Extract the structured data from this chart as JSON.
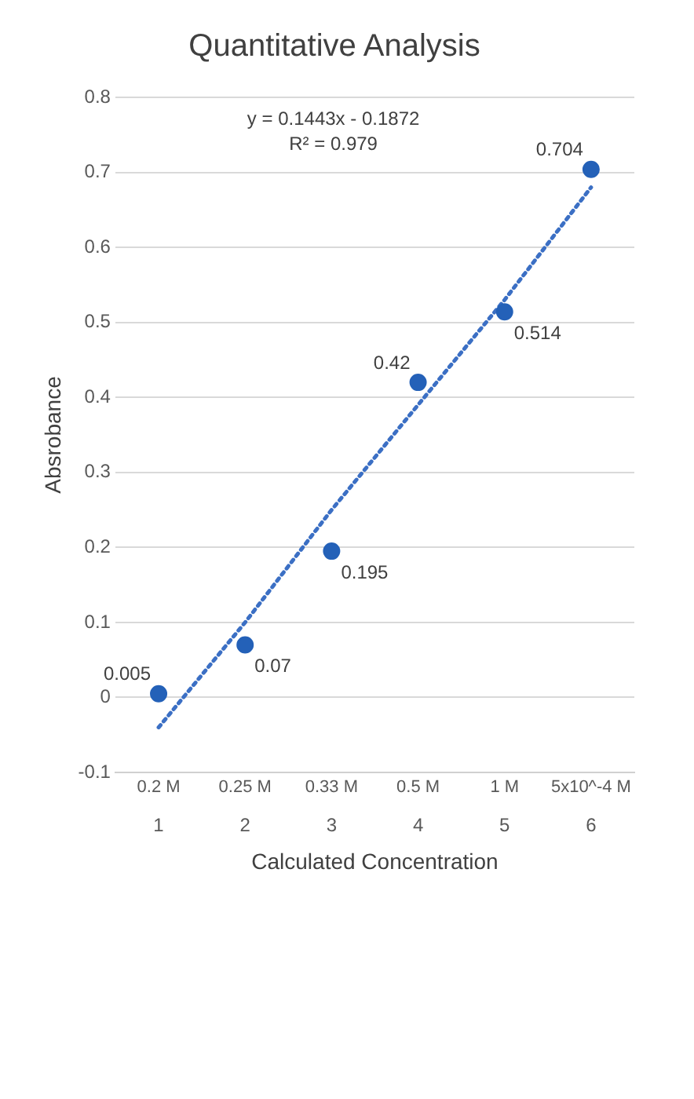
{
  "chart_data": {
    "type": "scatter",
    "title": "Quantitative Analysis",
    "xlabel": "Calculated Concentration",
    "ylabel": "Absrobance",
    "categories": [
      "0.2 M",
      "0.25 M",
      "0.33 M",
      "0.5 M",
      "1 M",
      "5x10^-4 M"
    ],
    "ylim": [
      -0.1,
      0.8
    ],
    "yticks": [
      -0.1,
      0,
      0.1,
      0.2,
      0.3,
      0.4,
      0.5,
      0.6,
      0.7,
      0.8
    ],
    "series": [
      {
        "color": "#2461b8",
        "values": [
          0.005,
          0.07,
          0.195,
          0.42,
          0.514,
          0.704
        ],
        "marker": "circle",
        "value_labels": [
          "0.005",
          "0.07",
          "0.195",
          "0.42",
          "0.514",
          "0.704"
        ]
      },
      {
        "type": "line",
        "color": "#3b6fc4",
        "values": [
          -0.04,
          0.1,
          0.25,
          0.39,
          0.53,
          0.68
        ],
        "line_style": "dotted",
        "marker": "none"
      }
    ],
    "grid": "y",
    "legend": false,
    "annotations": [
      "y = 0.1443x - 0.1872",
      "R² = 0.979",
      "1",
      "2",
      "3",
      "4",
      "5",
      "6"
    ]
  }
}
